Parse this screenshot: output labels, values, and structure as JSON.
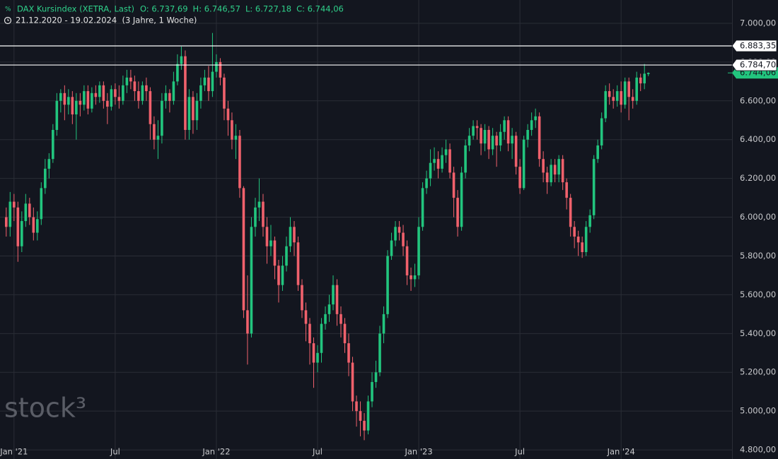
{
  "chart_data": {
    "type": "candlestick",
    "title": "DAX Kursindex (XETRA, Last)",
    "ohlc_labels": [
      "O: 6.737,69",
      "H: 6.746,57",
      "L: 6.727,18",
      "C: 6.744,06"
    ],
    "subtitle": "21.12.2020 - 19.02.2024  (3 Jahre, 1 Woche)",
    "watermark": "stock³",
    "up_color": "#22c57e",
    "down_color": "#f0616c",
    "xlim": [
      -1.6,
      186.5
    ],
    "xticks": [
      {
        "value": 2,
        "label": "Jan '21"
      },
      {
        "value": 28,
        "label": "Jul"
      },
      {
        "value": 54,
        "label": "Jan '22"
      },
      {
        "value": 80,
        "label": "Jul"
      },
      {
        "value": 106,
        "label": "Jan '23"
      },
      {
        "value": 132,
        "label": "Jul"
      },
      {
        "value": 158,
        "label": "Jan '24"
      }
    ],
    "ylim": [
      4753,
      7120
    ],
    "yticks": [
      {
        "value": 4800,
        "label": "4.800,00"
      },
      {
        "value": 5000,
        "label": "5.000,00"
      },
      {
        "value": 5200,
        "label": "5.200,00"
      },
      {
        "value": 5400,
        "label": "5.400,00"
      },
      {
        "value": 5600,
        "label": "5.600,00"
      },
      {
        "value": 5800,
        "label": "5.800,00"
      },
      {
        "value": 6000,
        "label": "6.000,00"
      },
      {
        "value": 6200,
        "label": "6.200,00"
      },
      {
        "value": 6400,
        "label": "6.400,00"
      },
      {
        "value": 6600,
        "label": "6.600,00"
      },
      {
        "value": 6800,
        "label": "6.800,00"
      },
      {
        "value": 7000,
        "label": "7.000,00"
      }
    ],
    "grid": true,
    "hlines": [
      {
        "value": 6883.35,
        "label": "6.883,35"
      },
      {
        "value": 6784.7,
        "label": "6.784,70"
      }
    ],
    "last_price": {
      "value": 6744.06,
      "label": "6.744,06"
    },
    "series": [
      {
        "name": "DAX Kursindex (XETRA, Last)",
        "open": [
          6000,
          5950,
          6080,
          6050,
          5850,
          5980,
          6070,
          6000,
          5920,
          5990,
          6150,
          6250,
          6300,
          6450,
          6600,
          6640,
          6580,
          6620,
          6530,
          6600,
          6580,
          6650,
          6560,
          6640,
          6620,
          6680,
          6600,
          6570,
          6660,
          6620,
          6600,
          6680,
          6720,
          6700,
          6650,
          6600,
          6680,
          6650,
          6480,
          6400,
          6420,
          6600,
          6640,
          6600,
          6700,
          6790,
          6830,
          6450,
          6620,
          6500,
          6600,
          6680,
          6720,
          6650,
          6750,
          6800,
          6720,
          6560,
          6500,
          6400,
          6420,
          6150,
          5520,
          5400,
          5950,
          6050,
          6080,
          5950,
          5850,
          5880,
          5750,
          5650,
          5750,
          5850,
          5950,
          5870,
          5650,
          5520,
          5450,
          5350,
          5250,
          5300,
          5450,
          5500,
          5550,
          5650,
          5500,
          5450,
          5350,
          5250,
          5050,
          5000,
          4950,
          4900,
          5050,
          5150,
          5200,
          5400,
          5500,
          5800,
          5880,
          5950,
          5920,
          5850,
          5700,
          5680,
          5700,
          5950,
          6150,
          6200,
          6280,
          6300,
          6250,
          6320,
          6350,
          6230,
          6100,
          5950,
          6230,
          6370,
          6420,
          6470,
          6460,
          6380,
          6450,
          6350,
          6420,
          6370,
          6440,
          6500,
          6380,
          6420,
          6260,
          6150,
          6400,
          6450,
          6500,
          6520,
          6300,
          6230,
          6180,
          6270,
          6220,
          6300,
          6180,
          6100,
          5950,
          5900,
          5870,
          5820,
          5950,
          6010,
          6300,
          6370,
          6510,
          6650,
          6620,
          6600,
          6650,
          6580,
          6700,
          6620,
          6600,
          6720,
          6690,
          6737.69
        ],
        "high": [
          6050,
          6130,
          6120,
          6080,
          6030,
          6120,
          6100,
          6050,
          6030,
          6180,
          6300,
          6330,
          6480,
          6640,
          6660,
          6680,
          6660,
          6650,
          6640,
          6640,
          6680,
          6680,
          6670,
          6680,
          6700,
          6700,
          6640,
          6680,
          6690,
          6680,
          6730,
          6760,
          6760,
          6730,
          6700,
          6700,
          6720,
          6670,
          6520,
          6500,
          6640,
          6680,
          6660,
          6750,
          6840,
          6880,
          6860,
          6660,
          6650,
          6640,
          6720,
          6760,
          6780,
          6950,
          6840,
          6820,
          6740,
          6600,
          6540,
          6480,
          6450,
          6160,
          5700,
          6000,
          6100,
          6200,
          6120,
          6000,
          5960,
          5900,
          5780,
          5800,
          5900,
          6000,
          5980,
          5900,
          5680,
          5560,
          5480,
          5380,
          5340,
          5480,
          5540,
          5600,
          5700,
          5680,
          5540,
          5480,
          5400,
          5280,
          5080,
          5050,
          4990,
          5080,
          5200,
          5260,
          5440,
          5540,
          5830,
          5920,
          5980,
          5980,
          5960,
          5880,
          5740,
          5760,
          6000,
          6180,
          6240,
          6350,
          6360,
          6340,
          6360,
          6400,
          6380,
          6260,
          6140,
          6260,
          6400,
          6460,
          6500,
          6500,
          6480,
          6480,
          6470,
          6460,
          6440,
          6480,
          6520,
          6520,
          6460,
          6440,
          6300,
          6420,
          6480,
          6540,
          6560,
          6540,
          6340,
          6260,
          6300,
          6300,
          6320,
          6320,
          6200,
          6120,
          5980,
          5930,
          5900,
          5980,
          6040,
          6320,
          6400,
          6540,
          6680,
          6690,
          6660,
          6680,
          6700,
          6720,
          6720,
          6660,
          6750,
          6740,
          6790,
          6746.57
        ],
        "low": [
          5900,
          5900,
          5980,
          5770,
          5820,
          5950,
          5960,
          5880,
          5880,
          5960,
          6120,
          6200,
          6280,
          6420,
          6540,
          6500,
          6530,
          6480,
          6400,
          6520,
          6550,
          6530,
          6540,
          6580,
          6590,
          6560,
          6480,
          6550,
          6580,
          6560,
          6580,
          6640,
          6660,
          6600,
          6560,
          6580,
          6600,
          6400,
          6350,
          6300,
          6380,
          6560,
          6540,
          6580,
          6680,
          6760,
          6400,
          6400,
          6430,
          6450,
          6560,
          6650,
          6600,
          6620,
          6720,
          6680,
          6500,
          6420,
          6350,
          6300,
          6100,
          5480,
          5240,
          5380,
          5900,
          5980,
          5900,
          5760,
          5800,
          5680,
          5560,
          5620,
          5720,
          5820,
          5800,
          5620,
          5480,
          5360,
          5240,
          5120,
          5200,
          5250,
          5420,
          5460,
          5520,
          5440,
          5380,
          5300,
          5180,
          5000,
          4920,
          4870,
          4850,
          4880,
          5020,
          5120,
          5180,
          5350,
          5480,
          5780,
          5850,
          5880,
          5800,
          5650,
          5620,
          5640,
          5680,
          5930,
          6120,
          6160,
          6240,
          6200,
          6230,
          6280,
          6200,
          6000,
          5900,
          5930,
          6200,
          6340,
          6400,
          6400,
          6320,
          6340,
          6300,
          6320,
          6260,
          6340,
          6400,
          6340,
          6300,
          6220,
          6120,
          6140,
          6360,
          6420,
          6460,
          6260,
          6180,
          6120,
          6160,
          6180,
          6180,
          6140,
          6040,
          5900,
          5840,
          5800,
          5790,
          5800,
          5920,
          5990,
          6280,
          6350,
          6490,
          6580,
          6560,
          6570,
          6540,
          6560,
          6500,
          6560,
          6580,
          6650,
          6660,
          6727.18
        ],
        "close": [
          5950,
          6080,
          6050,
          5850,
          5980,
          6070,
          6000,
          5920,
          5990,
          6150,
          6250,
          6300,
          6450,
          6600,
          6640,
          6580,
          6620,
          6530,
          6600,
          6580,
          6650,
          6560,
          6640,
          6620,
          6680,
          6600,
          6570,
          6660,
          6620,
          6600,
          6680,
          6720,
          6700,
          6650,
          6600,
          6680,
          6650,
          6480,
          6400,
          6420,
          6600,
          6640,
          6600,
          6700,
          6790,
          6830,
          6450,
          6620,
          6500,
          6600,
          6680,
          6720,
          6650,
          6750,
          6800,
          6720,
          6560,
          6500,
          6400,
          6420,
          6150,
          5520,
          5400,
          5950,
          6050,
          6080,
          5950,
          5850,
          5880,
          5750,
          5650,
          5750,
          5850,
          5950,
          5870,
          5650,
          5520,
          5450,
          5350,
          5250,
          5300,
          5450,
          5500,
          5550,
          5650,
          5500,
          5450,
          5350,
          5250,
          5050,
          5000,
          4950,
          4900,
          5050,
          5150,
          5200,
          5400,
          5500,
          5800,
          5880,
          5950,
          5920,
          5850,
          5700,
          5680,
          5700,
          5950,
          6150,
          6200,
          6280,
          6300,
          6250,
          6320,
          6350,
          6230,
          6100,
          5950,
          6230,
          6370,
          6420,
          6470,
          6460,
          6380,
          6450,
          6350,
          6420,
          6370,
          6440,
          6500,
          6380,
          6420,
          6260,
          6150,
          6400,
          6450,
          6500,
          6520,
          6300,
          6230,
          6180,
          6270,
          6220,
          6300,
          6180,
          6100,
          5950,
          5900,
          5870,
          5820,
          5950,
          6010,
          6300,
          6370,
          6510,
          6650,
          6620,
          6600,
          6650,
          6580,
          6700,
          6620,
          6600,
          6720,
          6690,
          6740,
          6744.06
        ]
      }
    ]
  }
}
